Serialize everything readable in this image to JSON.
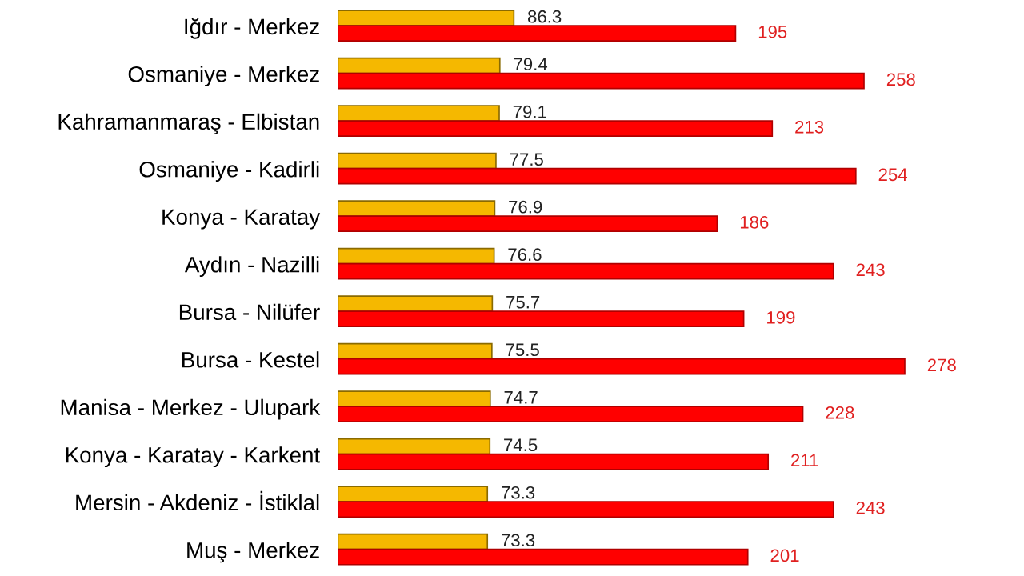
{
  "chart_data": {
    "type": "bar",
    "orientation": "horizontal",
    "data_labels": true,
    "categories": [
      "Iğdır - Merkez",
      "Osmaniye - Merkez",
      "Kahramanmaraş - Elbistan",
      "Osmaniye - Kadirli",
      "Konya - Karatay",
      "Aydın - Nazilli",
      "Bursa - Nilüfer",
      "Bursa - Kestel",
      "Manisa - Merkez - Ulupark",
      "Konya - Karatay - Karkent",
      "Mersin - Akdeniz - İstiklal",
      "Muş - Merkez"
    ],
    "series": [
      {
        "color": "#f5b800",
        "values": [
          86.3,
          79.4,
          79.1,
          77.5,
          76.9,
          76.6,
          75.7,
          75.5,
          74.7,
          74.5,
          73.3,
          73.3
        ]
      },
      {
        "color": "#ff0000",
        "values": [
          195,
          258,
          213,
          254,
          186,
          243,
          199,
          278,
          228,
          211,
          243,
          201
        ]
      }
    ]
  }
}
